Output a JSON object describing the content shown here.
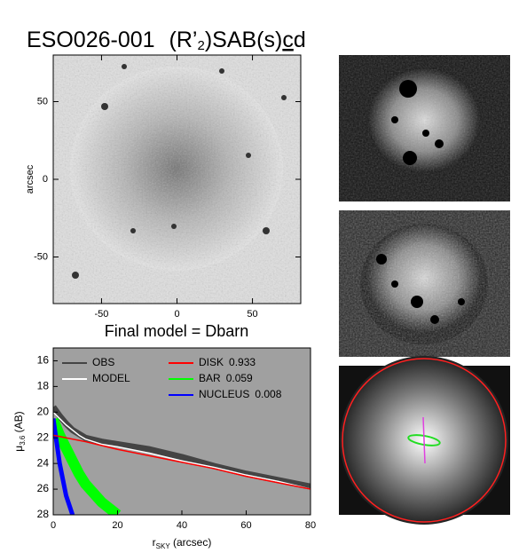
{
  "title_parts": [
    "ESO026-001",
    "(R’",
    "2",
    ")SAB(s)",
    "c",
    "d"
  ],
  "image": {
    "ylabel": "arcsec",
    "xlim": [
      -82,
      82
    ],
    "xticks": [
      -50,
      0,
      50
    ],
    "ylim": [
      -80,
      80
    ],
    "yticks": [
      -50,
      0,
      50
    ]
  },
  "subtitle": "Final model = Dbarn",
  "chart_data": {
    "type": "line",
    "xlabel_parts": [
      "r",
      "SKY",
      " (arcsec)"
    ],
    "ylabel_parts": [
      "μ",
      "3.6",
      " (AB)"
    ],
    "x": [
      0,
      2,
      4,
      6,
      8,
      10,
      15,
      20,
      30,
      40,
      50,
      60,
      70,
      80
    ],
    "xlim": [
      0,
      80
    ],
    "xticks": [
      0,
      20,
      40,
      60,
      80
    ],
    "ylim": [
      28,
      15
    ],
    "yticks": [
      16,
      18,
      20,
      22,
      24,
      26,
      28
    ],
    "series": [
      {
        "name": "OBS",
        "color": "#444444",
        "values": [
          19.6,
          20.3,
          20.9,
          21.4,
          21.7,
          22.0,
          22.3,
          22.5,
          22.9,
          23.5,
          24.2,
          24.8,
          25.3,
          25.8
        ]
      },
      {
        "name": "MODEL",
        "color": "#ffffff",
        "values": [
          20.0,
          20.5,
          21.0,
          21.4,
          21.8,
          22.1,
          22.5,
          22.7,
          23.2,
          23.8,
          24.3,
          24.9,
          25.4,
          26.0
        ]
      },
      {
        "name": "DISK",
        "color": "#ff0000",
        "fraction": 0.933,
        "values": [
          21.8,
          21.9,
          22.0,
          22.1,
          22.2,
          22.3,
          22.6,
          22.9,
          23.4,
          23.9,
          24.4,
          25.0,
          25.5,
          26.0
        ]
      },
      {
        "name": "BAR",
        "color": "#00ff00",
        "fraction": 0.059,
        "values": [
          20.6,
          21.8,
          22.8,
          23.8,
          24.8,
          25.6,
          27.0,
          28.0,
          null,
          null,
          null,
          null,
          null,
          null
        ]
      },
      {
        "name": "NUCLEUS",
        "color": "#0000ff",
        "fraction": 0.008,
        "values": [
          20.5,
          24.0,
          26.5,
          28.0,
          null,
          null,
          null,
          null,
          null,
          null,
          null,
          null,
          null,
          null
        ]
      }
    ]
  }
}
